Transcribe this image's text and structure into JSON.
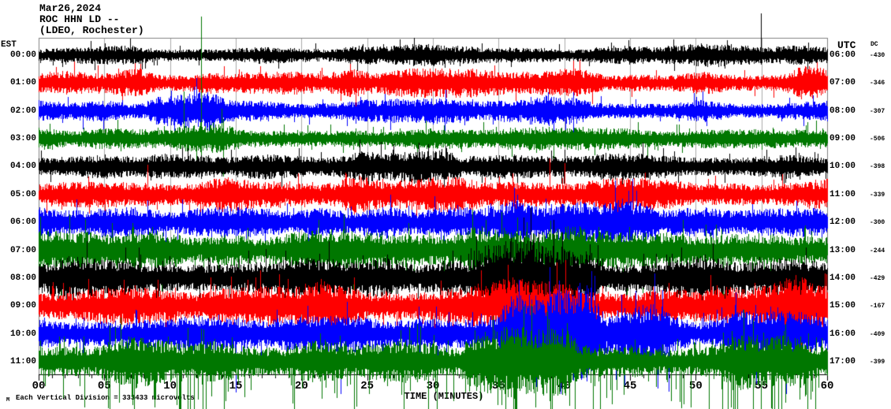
{
  "title": {
    "date": "Mar26,2024",
    "station": "ROC HHN LD --",
    "network": "(LDEO, Rochester)"
  },
  "axes": {
    "left_label": "EST",
    "right_label": "UTC",
    "dc_label": "DC",
    "x_title": "TIME (MINUTES)",
    "x_ticks": [
      "00",
      "05",
      "10",
      "15",
      "20",
      "25",
      "30",
      "35",
      "40",
      "45",
      "50",
      "55",
      "60"
    ],
    "x_major_step_minutes": 5,
    "x_minor_step_minutes": 1
  },
  "footer": {
    "mark": "M",
    "scale_text": "Each Vertical Division = 333433 microvolts"
  },
  "colors": {
    "black": "#000000",
    "red": "#ff0000",
    "blue": "#0000ff",
    "green": "#007700",
    "grid": "#aaaaaa",
    "frame": "#808080",
    "axis": "#000000"
  },
  "chart_data": {
    "type": "line",
    "subtype": "helicorder-seismogram",
    "x_range_minutes": [
      0,
      60
    ],
    "minutes_per_row": 60,
    "grid": "vertical every 5 minutes",
    "rows": [
      {
        "est": "00:00",
        "utc": "06:00",
        "dc": "-430",
        "color": "#000000",
        "base": 8,
        "env": [
          [
            24,
            34,
            2
          ],
          [
            48,
            60,
            2
          ]
        ],
        "spikes": [
          [
            54.95,
            53,
            12
          ]
        ],
        "spk": 0.025,
        "dspk": 0
      },
      {
        "est": "01:00",
        "utc": "07:00",
        "dc": "-346",
        "color": "#ff0000",
        "base": 10,
        "env": [
          [
            2,
            8,
            3
          ],
          [
            13,
            24,
            3
          ],
          [
            27,
            42,
            3
          ],
          [
            58.3,
            60,
            8
          ]
        ],
        "spikes": [
          [
            4.5,
            22,
            10
          ],
          [
            59.2,
            26,
            14
          ]
        ],
        "spk": 0.03,
        "dspk": 0
      },
      {
        "est": "02:00",
        "utc": "08:00",
        "dc": "-307",
        "color": "#0000ff",
        "base": 10,
        "env": [
          [
            9,
            13,
            8
          ],
          [
            25,
            31,
            2
          ],
          [
            38,
            41,
            4
          ]
        ],
        "spikes": [
          [
            10.1,
            26,
            18
          ],
          [
            40.7,
            24,
            30
          ]
        ],
        "spk": 0.03,
        "dspk": 0
      },
      {
        "est": "03:00",
        "utc": "09:00",
        "dc": "-506",
        "color": "#007700",
        "base": 10,
        "env": [
          [
            11,
            14,
            4
          ],
          [
            30,
            38,
            2
          ]
        ],
        "spikes": [
          [
            12.35,
            155,
            22
          ],
          [
            11.05,
            60,
            12
          ],
          [
            13.9,
            38,
            10
          ],
          [
            14.05,
            25,
            48
          ]
        ],
        "spk": 0.035,
        "dspk": 0
      },
      {
        "est": "04:00",
        "utc": "10:00",
        "dc": "-398",
        "color": "#000000",
        "base": 11,
        "env": [
          [
            25,
            31,
            4
          ],
          [
            43,
            48,
            2
          ]
        ],
        "spikes": [
          [
            27,
            28,
            14
          ]
        ],
        "spk": 0.03,
        "dspk": 0
      },
      {
        "est": "05:00",
        "utc": "11:00",
        "dc": "-339",
        "color": "#ff0000",
        "base": 13,
        "env": [
          [
            13,
            18,
            3
          ],
          [
            24,
            33,
            4
          ],
          [
            41,
            46,
            3
          ]
        ],
        "spikes": [
          [
            38.9,
            46,
            10
          ],
          [
            40.0,
            40,
            12
          ],
          [
            8.3,
            38,
            8
          ]
        ],
        "spk": 0.035,
        "dspk": 0
      },
      {
        "est": "06:00",
        "utc": "12:00",
        "dc": "-300",
        "color": "#0000ff",
        "base": 14,
        "env": [
          [
            5,
            9,
            3
          ],
          [
            36,
            43,
            6
          ],
          [
            44.3,
            46,
            14
          ]
        ],
        "spikes": [
          [
            45.2,
            55,
            20
          ],
          [
            44.9,
            40,
            28
          ],
          [
            38.6,
            30,
            26
          ]
        ],
        "spk": 0.04,
        "dspk": 0
      },
      {
        "est": "07:00",
        "utc": "13:00",
        "dc": "-244",
        "color": "#007700",
        "base": 17,
        "env": [
          [
            0,
            4,
            3
          ],
          [
            20,
            28,
            2
          ],
          [
            33,
            41,
            10
          ]
        ],
        "spikes": [
          [
            36.4,
            42,
            30
          ],
          [
            7.2,
            30,
            20
          ]
        ],
        "spk": 0.045,
        "dspk": 0.01
      },
      {
        "est": "08:00",
        "utc": "14:00",
        "dc": "-429",
        "color": "#000000",
        "base": 18,
        "env": [
          [
            0,
            7,
            3
          ],
          [
            34,
            42,
            20
          ],
          [
            50,
            60,
            3
          ]
        ],
        "spikes": [
          [
            37.2,
            48,
            34
          ],
          [
            39.8,
            40,
            40
          ]
        ],
        "spk": 0.05,
        "dspk": 0
      },
      {
        "est": "09:00",
        "utc": "15:00",
        "dc": "-167",
        "color": "#ff0000",
        "base": 17,
        "env": [
          [
            18,
            24,
            6
          ],
          [
            33,
            40,
            9
          ],
          [
            55,
            59.5,
            9
          ]
        ],
        "spikes": [
          [
            39.4,
            55,
            26
          ],
          [
            21.5,
            34,
            20
          ],
          [
            57.5,
            30,
            26
          ]
        ],
        "spk": 0.05,
        "dspk": 0
      },
      {
        "est": "10:00",
        "utc": "16:00",
        "dc": "-409",
        "color": "#0000ff",
        "base": 16,
        "env": [
          [
            8,
            12,
            3
          ],
          [
            36,
            42,
            30
          ],
          [
            44,
            47,
            14
          ],
          [
            53,
            58,
            10
          ]
        ],
        "spikes": [
          [
            38.9,
            85,
            40
          ],
          [
            39.6,
            60,
            70
          ],
          [
            40.9,
            45,
            55
          ],
          [
            45.4,
            55,
            36
          ],
          [
            56.2,
            34,
            44
          ]
        ],
        "spk": 0.05,
        "dspk": 0.012
      },
      {
        "est": "11:00",
        "utc": "17:00",
        "dc": "-399",
        "color": "#007700",
        "base": 16,
        "env": [
          [
            5,
            13,
            8
          ],
          [
            20,
            30,
            3
          ],
          [
            33,
            40,
            16
          ],
          [
            53,
            58,
            11
          ]
        ],
        "spikes": [
          [
            6.1,
            18,
            52
          ],
          [
            8.8,
            24,
            58
          ],
          [
            12.5,
            20,
            62
          ],
          [
            14.2,
            16,
            50
          ],
          [
            22.5,
            14,
            40
          ],
          [
            30.2,
            12,
            38
          ],
          [
            35.2,
            26,
            55
          ],
          [
            37.8,
            34,
            58
          ],
          [
            38.9,
            28,
            50
          ],
          [
            44.5,
            18,
            42
          ],
          [
            55.8,
            26,
            60
          ],
          [
            56.8,
            20,
            52
          ],
          [
            58.3,
            16,
            44
          ]
        ],
        "spk": 0.06,
        "dspk": 0.06
      }
    ]
  }
}
